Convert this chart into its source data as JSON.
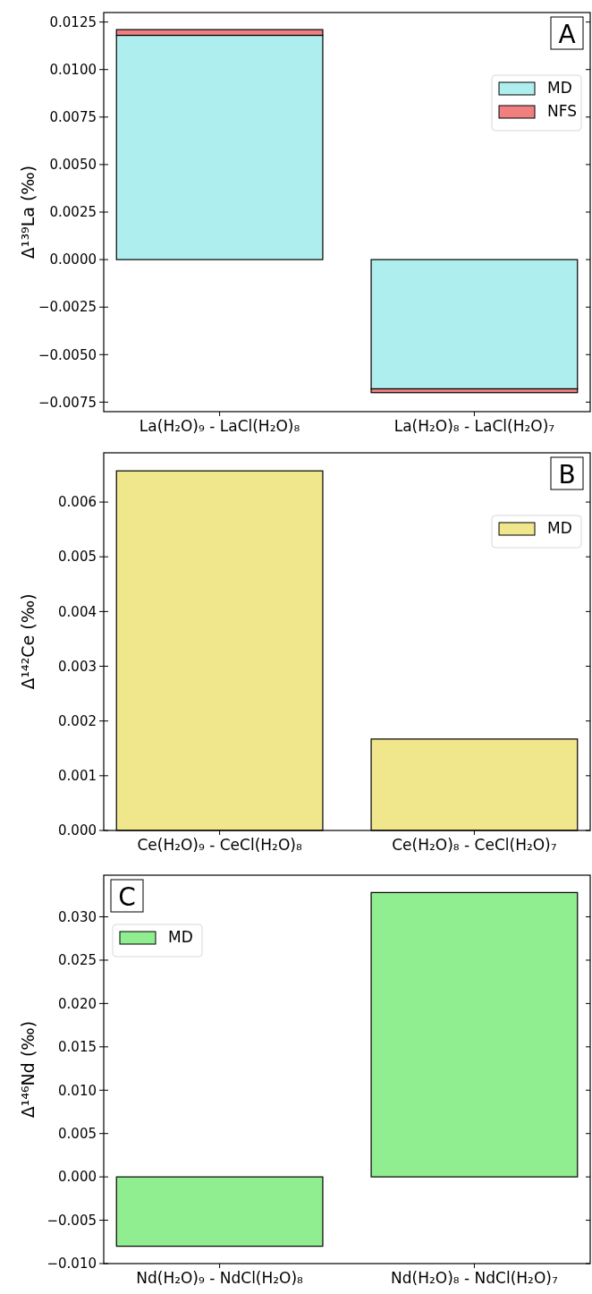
{
  "chart_data": [
    {
      "type": "bar",
      "stacked": true,
      "ylabel": "Δ¹³⁹La (‰)",
      "annotations": [
        "A"
      ],
      "categories": [
        "La(H₂O)₉ - LaCl(H₂O)₈",
        "La(H₂O)₈ - LaCl(H₂O)₇"
      ],
      "series": [
        {
          "name": "MD",
          "color": "#afeeee",
          "values": [
            0.0118,
            -0.0068
          ]
        },
        {
          "name": "NFS",
          "color": "#f08080",
          "values": [
            0.0003,
            -0.0002
          ]
        }
      ],
      "ylim": [
        -0.008,
        0.013
      ],
      "yticks": [
        {
          "value": -0.0075,
          "label": "−0.0075"
        },
        {
          "value": -0.005,
          "label": "−0.0050"
        },
        {
          "value": -0.0025,
          "label": "−0.0025"
        },
        {
          "value": 0,
          "label": "0.0000"
        },
        {
          "value": 0.0025,
          "label": "0.0025"
        },
        {
          "value": 0.005,
          "label": "0.0050"
        },
        {
          "value": 0.0075,
          "label": "0.0075"
        },
        {
          "value": 0.01,
          "label": "0.0100"
        },
        {
          "value": 0.0125,
          "label": "0.0125"
        }
      ],
      "legend": "top right"
    },
    {
      "type": "bar",
      "ylabel": "Δ¹⁴²Ce (‰)",
      "annotations": [
        "B"
      ],
      "categories": [
        "Ce(H₂O)₉ - CeCl(H₂O)₈",
        "Ce(H₂O)₈ - CeCl(H₂O)₇"
      ],
      "series": [
        {
          "name": "MD",
          "color": "#f0e68c",
          "values": [
            0.00657,
            0.00167
          ]
        }
      ],
      "ylim": [
        0,
        0.0069
      ],
      "yticks": [
        {
          "value": 0,
          "label": "0.000"
        },
        {
          "value": 0.001,
          "label": "0.001"
        },
        {
          "value": 0.002,
          "label": "0.002"
        },
        {
          "value": 0.003,
          "label": "0.003"
        },
        {
          "value": 0.004,
          "label": "0.004"
        },
        {
          "value": 0.005,
          "label": "0.005"
        },
        {
          "value": 0.006,
          "label": "0.006"
        }
      ],
      "legend": "top right"
    },
    {
      "type": "bar",
      "ylabel": "Δ¹⁴⁶Nd (‰)",
      "annotations": [
        "C"
      ],
      "categories": [
        "Nd(H₂O)₉ - NdCl(H₂O)₈",
        "Nd(H₂O)₈ - NdCl(H₂O)₇"
      ],
      "series": [
        {
          "name": "MD",
          "color": "#90ee90",
          "values": [
            -0.008,
            0.0328
          ]
        }
      ],
      "ylim": [
        -0.01,
        0.0348
      ],
      "yticks": [
        {
          "value": -0.01,
          "label": "−0.010"
        },
        {
          "value": -0.005,
          "label": "−0.005"
        },
        {
          "value": 0,
          "label": "0.000"
        },
        {
          "value": 0.005,
          "label": "0.005"
        },
        {
          "value": 0.01,
          "label": "0.010"
        },
        {
          "value": 0.015,
          "label": "0.015"
        },
        {
          "value": 0.02,
          "label": "0.020"
        },
        {
          "value": 0.025,
          "label": "0.025"
        },
        {
          "value": 0.03,
          "label": "0.030"
        }
      ],
      "legend": "top left"
    }
  ]
}
